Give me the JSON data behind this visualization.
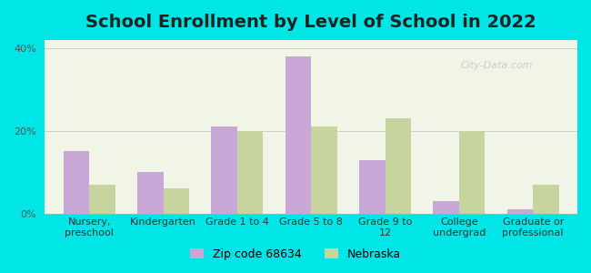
{
  "title": "School Enrollment by Level of School in 2022",
  "categories": [
    "Nursery,\npreschool",
    "Kindergarten",
    "Grade 1 to 4",
    "Grade 5 to 8",
    "Grade 9 to\n12",
    "College\nundergrad",
    "Graduate or\nprofessional"
  ],
  "zip_values": [
    15,
    10,
    21,
    38,
    13,
    3,
    1
  ],
  "nebraska_values": [
    7,
    6,
    20,
    21,
    23,
    20,
    7
  ],
  "zip_color": "#c9a8d8",
  "nebraska_color": "#c8d4a0",
  "background_outer": "#00e5e5",
  "background_inner": "#f0f5e8",
  "yticks": [
    0,
    20,
    40
  ],
  "ylim": [
    0,
    42
  ],
  "legend_zip_label": "Zip code 68634",
  "legend_nebraska_label": "Nebraska",
  "watermark": "City-Data.com",
  "bar_width": 0.35,
  "title_fontsize": 14,
  "tick_fontsize": 8,
  "legend_fontsize": 9
}
